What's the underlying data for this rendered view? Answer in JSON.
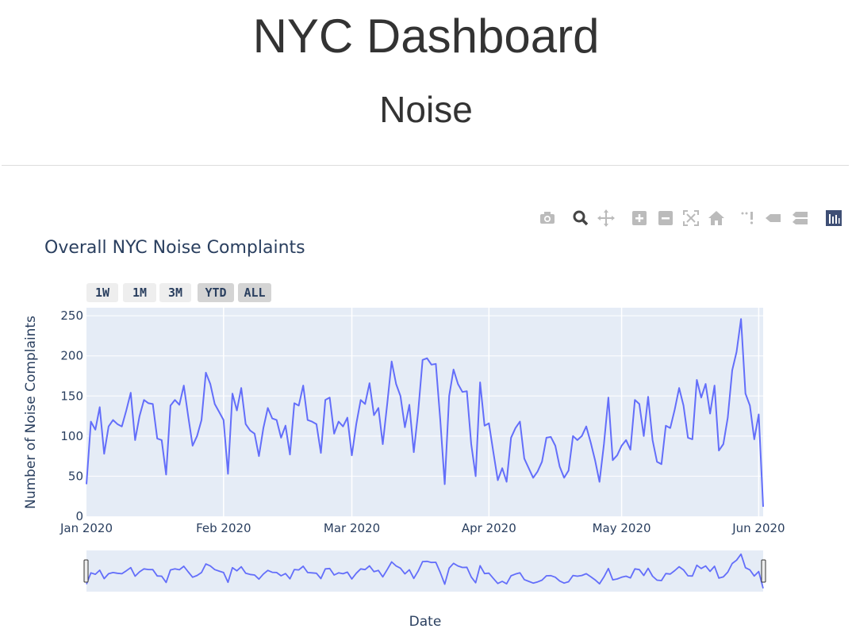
{
  "page": {
    "title": "NYC Dashboard",
    "subtitle": "Noise"
  },
  "modebar": {
    "icons": [
      "camera-icon",
      "zoom-icon",
      "pan-icon",
      "zoom-in-icon",
      "zoom-out-icon",
      "autoscale-icon",
      "reset-axes-icon",
      "spike-lines-icon",
      "hover-closest-icon",
      "hover-compare-icon",
      "plotly-logo-icon"
    ],
    "active_color": "#444444",
    "inactive_color": "#bbbbbb",
    "logo_color": "#3f4f75"
  },
  "range_selector": {
    "buttons": [
      {
        "label": "1W",
        "state": "normal"
      },
      {
        "label": "1M",
        "state": "normal"
      },
      {
        "label": "3M",
        "state": "normal"
      },
      {
        "label": "YTD",
        "state": "active"
      },
      {
        "label": "ALL",
        "state": "active"
      }
    ]
  },
  "chart_data": {
    "type": "line",
    "title": "Overall NYC Noise Complaints",
    "xlabel": "Date",
    "ylabel": "Number of Noise Complaints",
    "x_start": "2020-01-01",
    "ylim": [
      0,
      260
    ],
    "y_ticks": [
      0,
      50,
      100,
      150,
      200,
      250
    ],
    "x_ticks": [
      {
        "label": "Jan 2020",
        "date": "2020-01-01"
      },
      {
        "label": "Feb 2020",
        "date": "2020-02-01"
      },
      {
        "label": "Mar 2020",
        "date": "2020-03-01"
      },
      {
        "label": "Apr 2020",
        "date": "2020-04-01"
      },
      {
        "label": "May 2020",
        "date": "2020-05-01"
      },
      {
        "label": "Jun 2020",
        "date": "2020-06-01"
      }
    ],
    "grid": true,
    "line_color": "#636efa",
    "plot_bg": "#e5ecf6",
    "rangeslider": true,
    "series": [
      {
        "values": [
          40,
          118,
          108,
          136,
          78,
          112,
          120,
          115,
          112,
          132,
          154,
          95,
          125,
          145,
          141,
          140,
          97,
          95,
          52,
          138,
          145,
          139,
          163,
          125,
          88,
          100,
          120,
          179,
          165,
          140,
          130,
          120,
          53,
          153,
          132,
          160,
          115,
          107,
          103,
          75,
          110,
          135,
          122,
          120,
          98,
          113,
          77,
          141,
          138,
          163,
          120,
          118,
          115,
          79,
          145,
          148,
          103,
          118,
          112,
          123,
          76,
          115,
          145,
          140,
          166,
          126,
          135,
          90,
          140,
          193,
          165,
          150,
          111,
          139,
          80,
          130,
          195,
          197,
          189,
          190,
          120,
          40,
          150,
          183,
          165,
          155,
          156,
          90,
          50,
          167,
          113,
          116,
          80,
          45,
          60,
          43,
          98,
          110,
          118,
          72,
          60,
          48,
          56,
          68,
          98,
          99,
          88,
          62,
          48,
          57,
          100,
          95,
          100,
          112,
          92,
          70,
          43,
          90,
          148,
          70,
          76,
          88,
          95,
          83,
          145,
          140,
          100,
          149,
          95,
          68,
          65,
          113,
          110,
          133,
          160,
          138,
          98,
          96,
          170,
          148,
          165,
          128,
          163,
          82,
          90,
          123,
          182,
          205,
          246,
          153,
          138,
          96,
          127,
          12
        ]
      }
    ]
  }
}
